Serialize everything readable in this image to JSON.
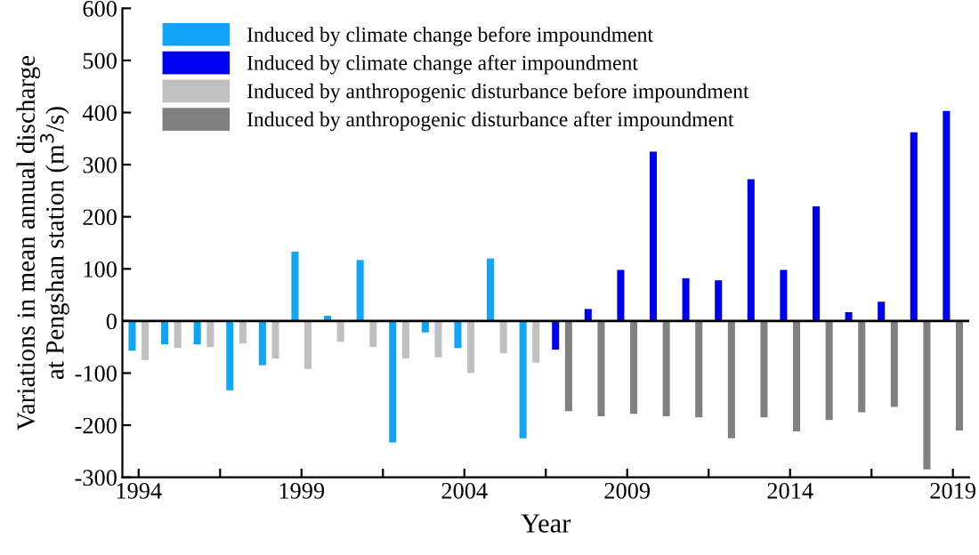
{
  "chart_data": {
    "type": "bar",
    "xlabel": "Year",
    "ylabel": "Variations in mean annual discharge\nat Pengshan station (m$^{3}$/s)",
    "series": [
      {
        "name": "Induced by climate change before impoundment",
        "color": "#12a4f6",
        "x": [
          1994,
          1995,
          1996,
          1997,
          1998,
          1999,
          2000,
          2001,
          2002,
          2003,
          2004,
          2005,
          2006
        ],
        "values": [
          -57,
          -45,
          -45,
          -133,
          -85,
          133,
          10,
          117,
          -233,
          -22,
          -52,
          120,
          -225
        ]
      },
      {
        "name": "Induced by climate change after impoundment",
        "color": "#0000f0",
        "x": [
          2007,
          2008,
          2009,
          2010,
          2011,
          2012,
          2013,
          2014,
          2015,
          2016,
          2017,
          2018,
          2019
        ],
        "values": [
          -55,
          23,
          98,
          325,
          82,
          78,
          272,
          98,
          220,
          17,
          37,
          362,
          403
        ]
      },
      {
        "name": "Induced by anthropogenic disturbance before impoundment",
        "color": "#c0c0c0",
        "x": [
          1994,
          1995,
          1996,
          1997,
          1998,
          1999,
          2000,
          2001,
          2002,
          2003,
          2004,
          2005,
          2006
        ],
        "values": [
          -75,
          -52,
          -50,
          -43,
          -72,
          -92,
          -40,
          -50,
          -72,
          -70,
          -100,
          -62,
          -80
        ]
      },
      {
        "name": "Induced by anthropogenic disturbance after impoundment",
        "color": "#808080",
        "x": [
          2007,
          2008,
          2009,
          2010,
          2011,
          2012,
          2013,
          2014,
          2015,
          2016,
          2017,
          2018,
          2019
        ],
        "values": [
          -173,
          -183,
          -178,
          -183,
          -185,
          -225,
          -185,
          -212,
          -190,
          -175,
          -165,
          -285,
          -210
        ]
      }
    ],
    "xlim": [
      1993.5,
      2019.5
    ],
    "xticks": [
      1994,
      {
        "value": 1996.5,
        "label": null
      },
      1999,
      {
        "value": 2001.5,
        "label": null
      },
      2004,
      {
        "value": 2006.5,
        "label": null
      },
      2009,
      {
        "value": 2011.5,
        "label": null
      },
      2014,
      {
        "value": 2016.5,
        "label": null
      },
      2019
    ],
    "ylim": [
      -300,
      600
    ],
    "yticks": [
      -300,
      -200,
      -100,
      0,
      100,
      200,
      300,
      400,
      500,
      600
    ],
    "ref_lines": [
      {
        "axis": "y",
        "value": 0,
        "color": "#000000"
      }
    ],
    "legend": "top left",
    "grid": false
  }
}
